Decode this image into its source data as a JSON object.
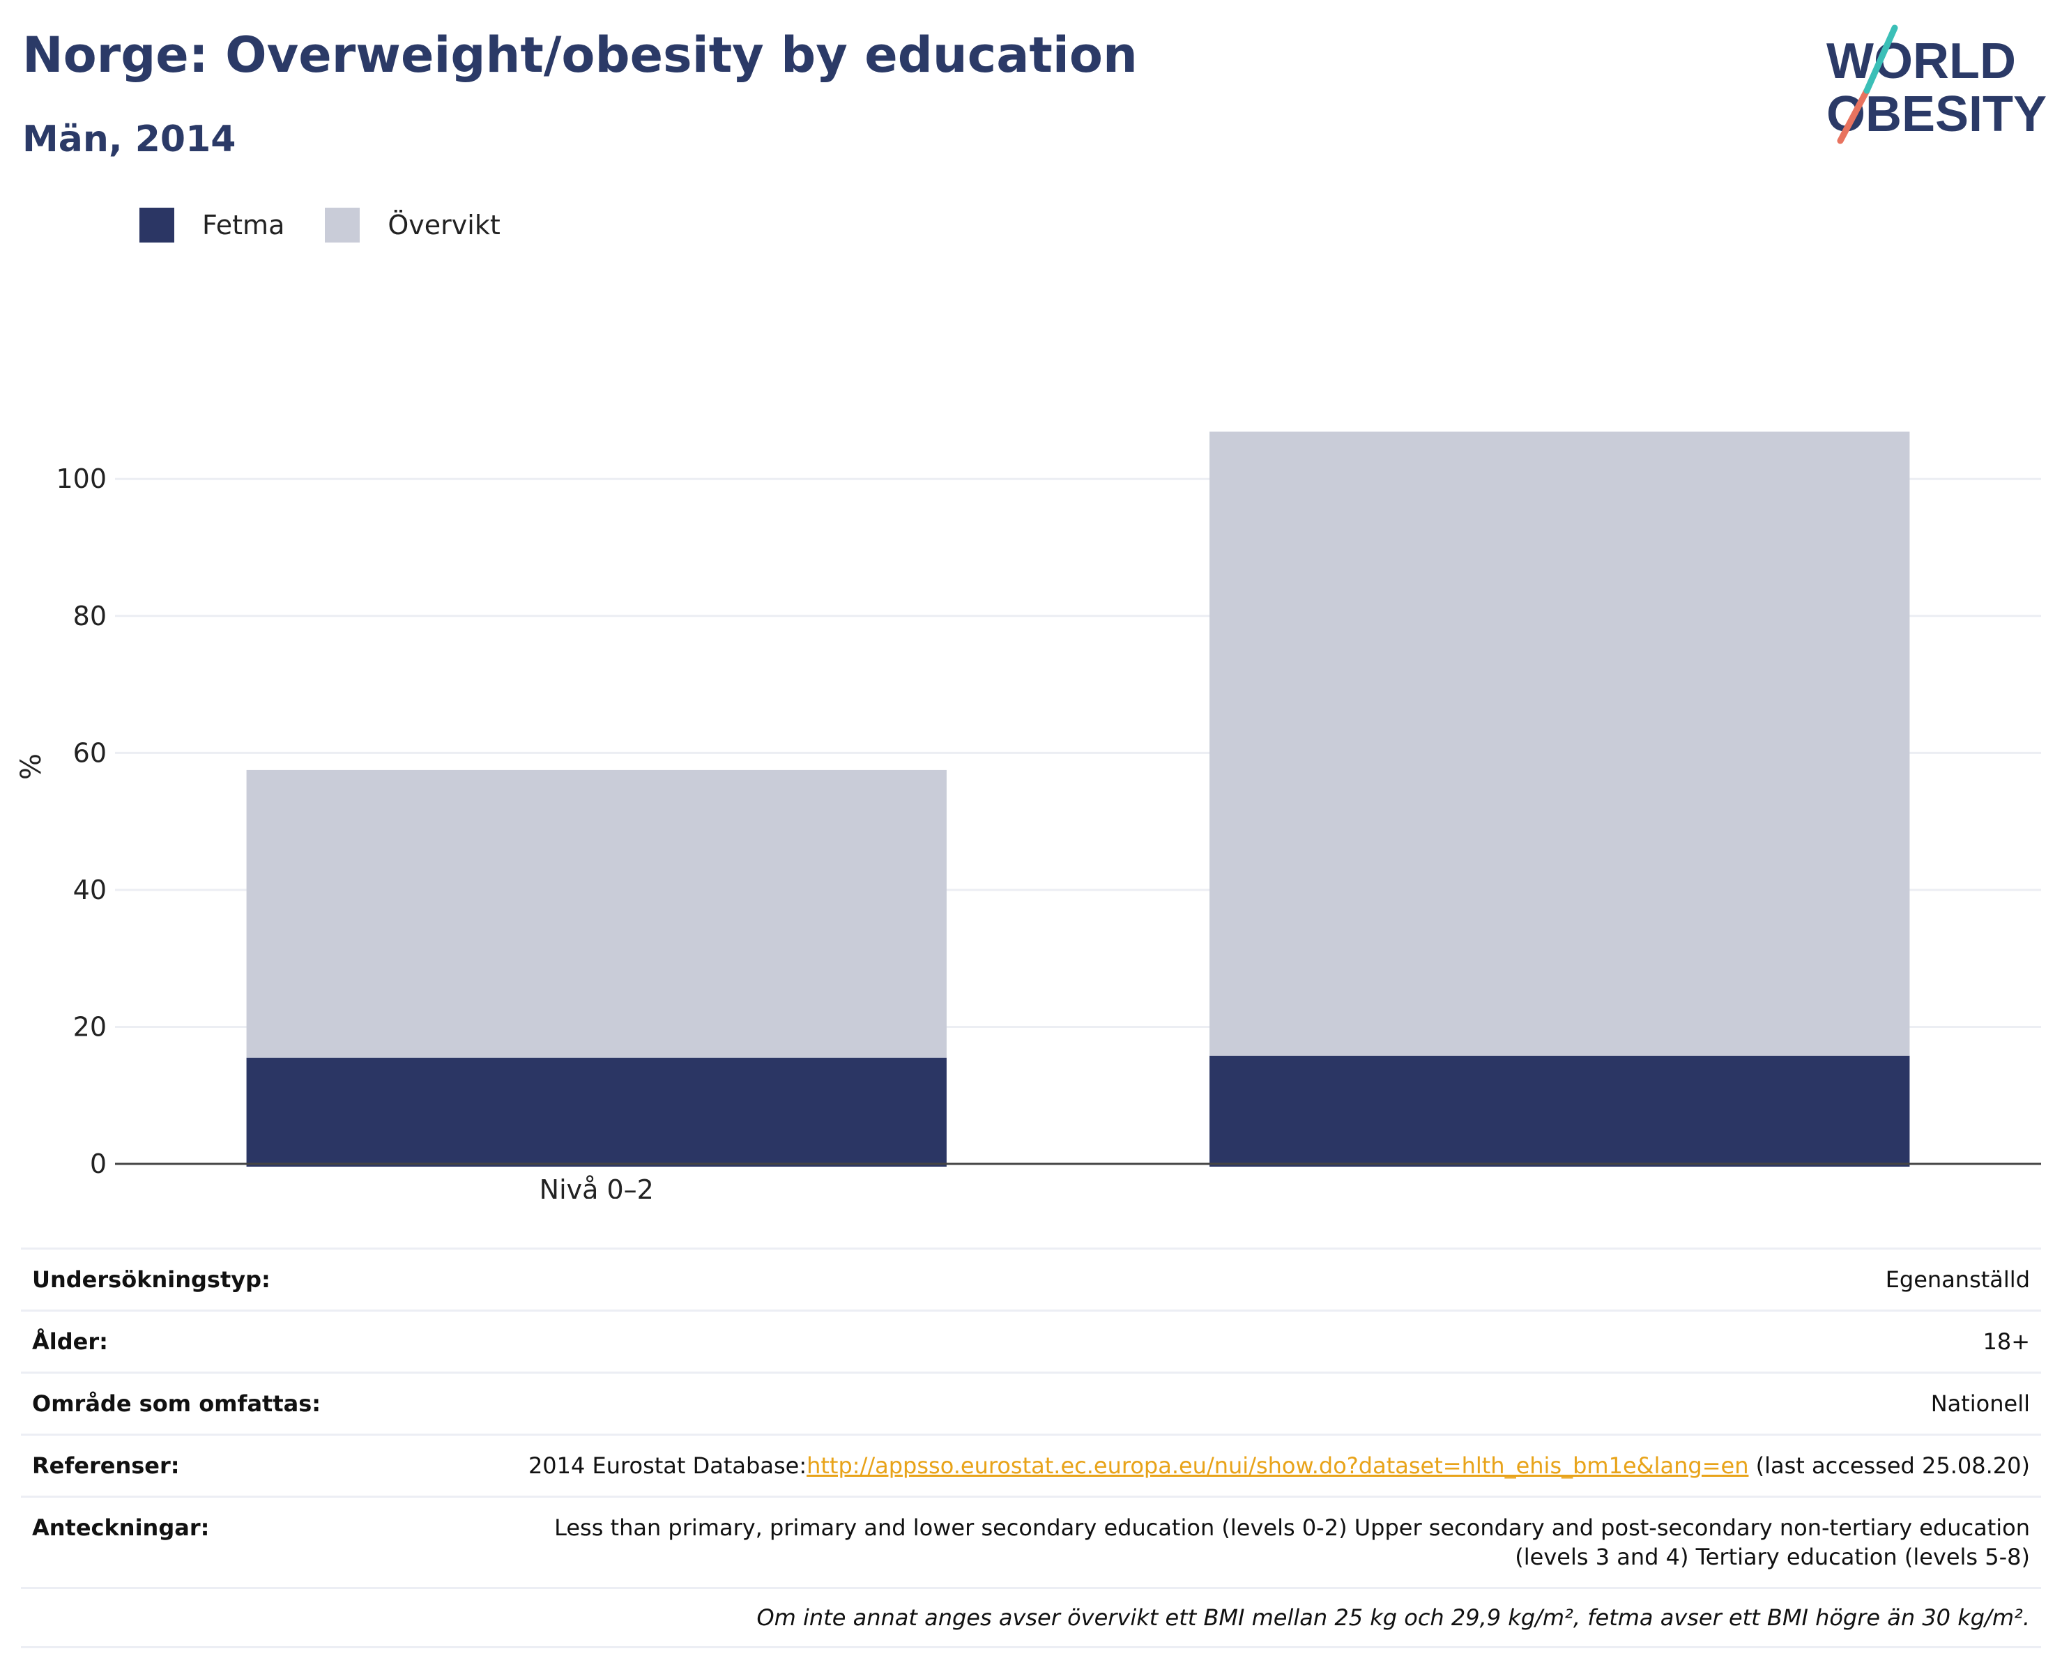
{
  "header": {
    "title": "Norge: Overweight/obesity by education",
    "subtitle": "Män, 2014"
  },
  "logo": {
    "line1": "WORLD",
    "line2": "OBESITY"
  },
  "legend": [
    {
      "label": "Fetma",
      "color": "#2b3664"
    },
    {
      "label": "Övervikt",
      "color": "#c9ccd8"
    }
  ],
  "chart_data": {
    "type": "bar",
    "stacked": true,
    "categories": [
      "Nivå 0–2",
      ""
    ],
    "series": [
      {
        "name": "Fetma",
        "color": "#2b3664",
        "values": [
          15.5,
          15.8
        ]
      },
      {
        "name": "Övervikt",
        "color": "#c9ccd8",
        "values": [
          42.0,
          91.1
        ]
      }
    ],
    "ylabel": "%",
    "ylim": [
      0,
      116
    ],
    "yticks": [
      0,
      20,
      40,
      60,
      80,
      100
    ],
    "grid": true
  },
  "metadata": {
    "rows": [
      {
        "key": "Undersökningstyp:",
        "value": "Egenanställd"
      },
      {
        "key": "Ålder:",
        "value": "18+"
      },
      {
        "key": "Område som omfattas:",
        "value": "Nationell"
      },
      {
        "key": "Referenser:",
        "value_prefix": "2014 Eurostat Database:",
        "link": "http://appsso.eurostat.ec.europa.eu/nui/show.do?dataset=hlth_ehis_bm1e&lang=en",
        "value_suffix": " (last accessed 25.08.20)"
      },
      {
        "key": "Anteckningar:",
        "value": "Less than primary, primary and lower secondary education (levels 0-2) Upper secondary and post-secondary non-tertiary education (levels 3 and 4) Tertiary education (levels 5-8)"
      }
    ],
    "note": "Om inte annat anges avser övervikt ett BMI mellan 25 kg och 29,9 kg/m², fetma avser ett BMI högre än 30 kg/m²."
  }
}
